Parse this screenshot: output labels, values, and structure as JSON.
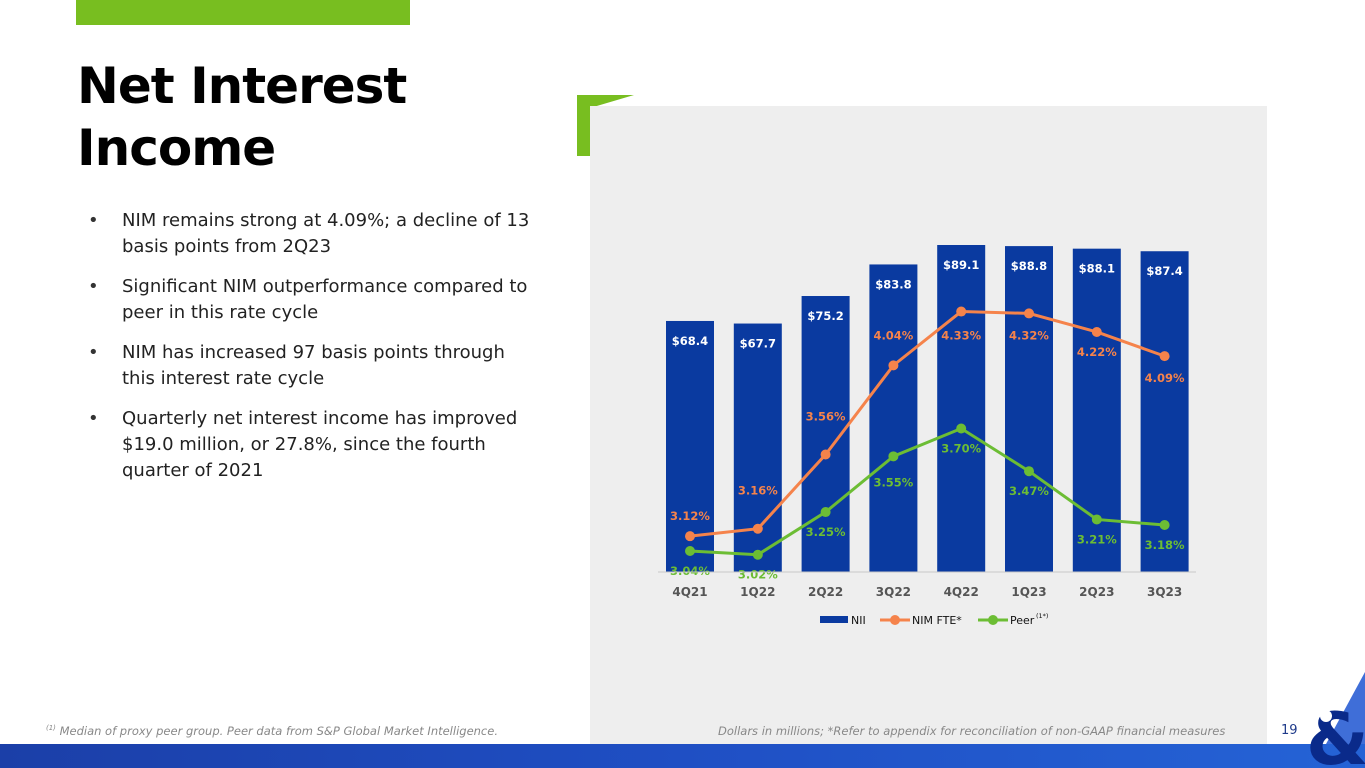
{
  "slide": {
    "title_line1": "Net Interest",
    "title_line2": "Income",
    "bullets": [
      "NIM remains strong at 4.09%; a decline of 13 basis points from 2Q23",
      "Significant NIM outperformance compared to peer in this rate cycle",
      "NIM has increased 97 basis points through this interest rate cycle",
      "Quarterly net interest income has improved $19.0 million, or 27.8%, since the fourth quarter of 2021"
    ],
    "footnote_left_marker": "(1)",
    "footnote_left": "Median of proxy peer group. Peer data from S&P Global Market Intelligence.",
    "footnote_right": "Dollars in millions; *Refer to appendix for reconciliation of non-GAAP financial measures",
    "page_number": "19"
  },
  "colors": {
    "accent_green": "#78be20",
    "bar_blue": "#0a3aa0",
    "nim_orange": "#f5834b",
    "peer_green": "#6cbd34",
    "panel_gray": "#eeeeee"
  },
  "chart_data": {
    "type": "bar",
    "categories": [
      "4Q21",
      "1Q22",
      "2Q22",
      "3Q22",
      "4Q22",
      "1Q23",
      "2Q23",
      "3Q23"
    ],
    "series": [
      {
        "name": "NII",
        "kind": "bar",
        "values": [
          68.4,
          67.7,
          75.2,
          83.8,
          89.1,
          88.8,
          88.1,
          87.4
        ],
        "labels": [
          "$68.4",
          "$67.7",
          "$75.2",
          "$83.8",
          "$89.1",
          "$88.8",
          "$88.1",
          "$87.4"
        ]
      },
      {
        "name": "NIM FTE*",
        "kind": "line",
        "values": [
          3.12,
          3.16,
          3.56,
          4.04,
          4.33,
          4.32,
          4.22,
          4.09
        ],
        "labels": [
          "3.12%",
          "3.16%",
          "3.56%",
          "4.04%",
          "4.33%",
          "4.32%",
          "4.22%",
          "4.09%"
        ]
      },
      {
        "name": "Peer",
        "name_sup": "(1*)",
        "kind": "line",
        "values": [
          3.04,
          3.02,
          3.25,
          3.55,
          3.7,
          3.47,
          3.21,
          3.18
        ],
        "labels": [
          "3.04%",
          "3.02%",
          "3.25%",
          "3.55%",
          "3.70%",
          "3.47%",
          "3.21%",
          "3.18%"
        ]
      }
    ],
    "ylim_bars": [
      0,
      89.1
    ],
    "ylim_lines": [
      2.9,
      4.5
    ],
    "legend_position": "bottom-center",
    "grid": false
  }
}
